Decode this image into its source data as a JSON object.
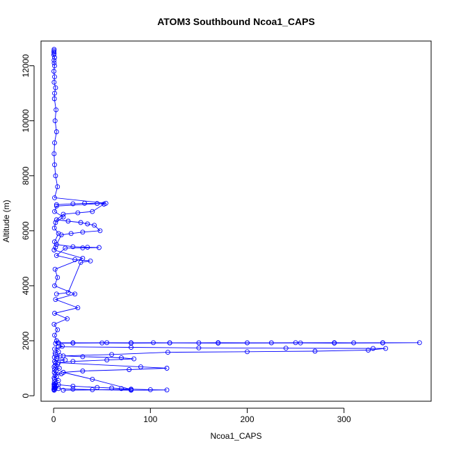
{
  "chart_data": {
    "type": "scatter",
    "title": "ATOM3 Southbound Ncoa1_CAPS",
    "xlabel": "Ncoa1_CAPS",
    "ylabel": "Altitude (m)",
    "xlim": [
      -13,
      390
    ],
    "ylim": [
      -200,
      12900
    ],
    "xticks": [
      0,
      100,
      200,
      300
    ],
    "yticks": [
      0,
      2000,
      4000,
      6000,
      8000,
      10000,
      12000
    ],
    "grid": false,
    "legend": "none",
    "point_style": "open-circle",
    "line_connected": true,
    "colors": {
      "series": "#0000ff",
      "axis": "#000000",
      "background": "#ffffff"
    },
    "series": [
      {
        "x": [
          0.5,
          1,
          0.3,
          1.5,
          0.8,
          2,
          0.5,
          1,
          3,
          0.6,
          1.2,
          0.4,
          2,
          0.8,
          5,
          1,
          0.5,
          3,
          1.5,
          8,
          0.7,
          2.5,
          1,
          6,
          0.5,
          1.5,
          4,
          2,
          1,
          12,
          3,
          0.8,
          7,
          2,
          1.5,
          5,
          1,
          9,
          2,
          3,
          1,
          4,
          0.5,
          14,
          1,
          25,
          2,
          22,
          1,
          4,
          1.5,
          30,
          0.5,
          2,
          1,
          5,
          0.8,
          2,
          10,
          1,
          3,
          54,
          1,
          4,
          2,
          1,
          0.5,
          1,
          3,
          1.5,
          2.5,
          0.8,
          1,
          2,
          0.5,
          1,
          0.3,
          1,
          0.6,
          0.4,
          1,
          0.2,
          0.5,
          0.3,
          0.4,
          0.5
        ],
        "y": [
          200,
          220,
          240,
          260,
          280,
          300,
          320,
          340,
          360,
          380,
          400,
          420,
          450,
          500,
          550,
          600,
          650,
          700,
          750,
          800,
          850,
          900,
          950,
          1000,
          1050,
          1100,
          1150,
          1200,
          1250,
          1300,
          1350,
          1400,
          1450,
          1500,
          1550,
          1600,
          1700,
          1800,
          1900,
          2000,
          2200,
          2400,
          2600,
          2800,
          3000,
          3200,
          3500,
          3700,
          4000,
          4300,
          4600,
          5000,
          5300,
          5400,
          5600,
          5900,
          6100,
          6300,
          6500,
          6700,
          6900,
          7000,
          7200,
          7600,
          8000,
          8400,
          8800,
          9200,
          9600,
          10000,
          10400,
          10800,
          11000,
          11200,
          11400,
          11600,
          11800,
          12000,
          12100,
          12200,
          12300,
          12400,
          12450,
          12500,
          12550,
          12600
        ]
      },
      {
        "x": [
          5,
          20,
          55,
          80,
          103,
          120,
          150,
          170,
          200,
          225,
          250,
          290,
          310,
          340,
          378,
          340,
          290,
          255,
          170,
          120,
          80,
          50,
          20,
          5
        ],
        "y": [
          1925,
          1925,
          1930,
          1925,
          1930,
          1925,
          1925,
          1930,
          1925,
          1925,
          1930,
          1930,
          1925,
          1930,
          1930,
          1920,
          1915,
          1920,
          1915,
          1920,
          1915,
          1920,
          1915,
          1910
        ]
      },
      {
        "x": [
          5,
          80,
          150,
          240,
          330,
          343,
          325,
          270,
          200,
          118,
          60,
          10,
          30,
          70,
          83,
          55,
          20,
          5,
          90,
          117,
          78,
          30,
          10,
          40,
          80,
          10
        ],
        "y": [
          1780,
          1760,
          1740,
          1730,
          1720,
          1720,
          1660,
          1620,
          1600,
          1580,
          1500,
          1450,
          1420,
          1380,
          1340,
          1300,
          1250,
          1200,
          1050,
          1000,
          950,
          900,
          850,
          600,
          230,
          200
        ]
      },
      {
        "x": [
          5,
          20,
          45,
          60,
          70,
          80,
          100,
          117,
          80,
          40,
          20,
          5
        ],
        "y": [
          400,
          350,
          300,
          280,
          260,
          240,
          220,
          210,
          200,
          220,
          240,
          260
        ]
      },
      {
        "x": [
          3,
          20,
          32,
          45,
          52,
          40,
          25,
          10,
          3,
          15,
          28,
          35,
          42,
          48,
          30,
          18,
          8,
          3,
          20,
          35,
          47,
          30,
          12,
          3,
          22,
          38,
          28,
          15,
          3
        ],
        "y": [
          6950,
          6980,
          7000,
          6990,
          6970,
          6700,
          6650,
          6600,
          6400,
          6350,
          6300,
          6250,
          6200,
          6000,
          5950,
          5900,
          5850,
          5500,
          5420,
          5400,
          5390,
          5380,
          5370,
          5100,
          4950,
          4900,
          4850,
          3750,
          3700
        ]
      }
    ]
  }
}
